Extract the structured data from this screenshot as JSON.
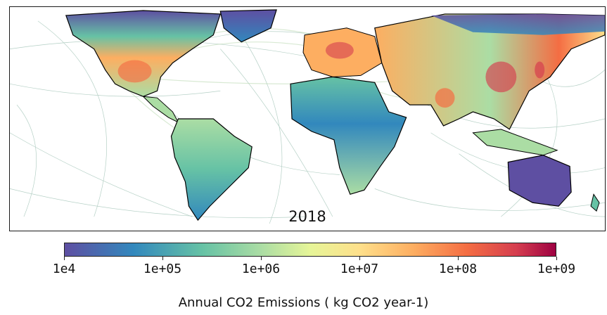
{
  "map": {
    "year": "2018",
    "colors": {
      "ocean": "#ffffff",
      "ship_tracks": "#8fb8a8",
      "air_routes": "#b9d8b0",
      "coastline": "#000000",
      "low_emission": "#5e4fa2",
      "mid_emission": "#abdda4",
      "high_emission": "#f46d43",
      "very_high_emission": "#d53e4f"
    }
  },
  "colorbar": {
    "title": "Annual CO2 Emissions ( kg CO2 year-1)",
    "scale": "log",
    "range": [
      10000,
      1000000000
    ],
    "ticks": [
      {
        "label": "1e4",
        "value": 10000
      },
      {
        "label": "1e+05",
        "value": 100000
      },
      {
        "label": "1e+06",
        "value": 1000000
      },
      {
        "label": "1e+07",
        "value": 10000000
      },
      {
        "label": "1e+08",
        "value": 100000000
      },
      {
        "label": "1e+09",
        "value": 1000000000
      }
    ],
    "colormap": [
      "#5e4fa2",
      "#3288bd",
      "#66c2a5",
      "#abdda4",
      "#e6f598",
      "#fee08b",
      "#fdae61",
      "#f46d43",
      "#d53e4f",
      "#9e0142"
    ]
  }
}
